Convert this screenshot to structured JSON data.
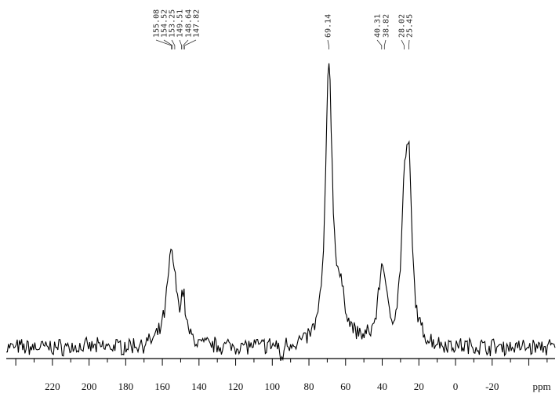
{
  "chart_data": {
    "type": "line",
    "title": "",
    "xlabel": "ppm",
    "ylabel": "",
    "xlim": [
      245,
      -53
    ],
    "x_reversed": true,
    "grid": false,
    "legend": "none",
    "xticks": [
      220,
      200,
      180,
      160,
      140,
      120,
      100,
      80,
      60,
      40,
      20,
      0,
      -20
    ],
    "xtick_labels": [
      "220",
      "200",
      "180",
      "160",
      "140",
      "120",
      "100",
      "80",
      "60",
      "40",
      "20",
      "0",
      "-20"
    ],
    "peak_labels": [
      "155.08",
      "154.52",
      "153.25",
      "149.51",
      "148.64",
      "147.82",
      "69.14",
      "40.31",
      "38.82",
      "28.02",
      "25.45"
    ],
    "peak_label_ppm": [
      155.08,
      154.52,
      153.25,
      149.51,
      148.64,
      147.82,
      69.14,
      40.31,
      38.82,
      28.02,
      25.45
    ],
    "series": [
      {
        "components": [
          {
            "ppm": 155.0,
            "intensity": 33,
            "fwhm": 6
          },
          {
            "ppm": 148.6,
            "intensity": 14,
            "fwhm": 3
          },
          {
            "ppm": 69.1,
            "intensity": 98,
            "fwhm": 4.2
          },
          {
            "ppm": 63.0,
            "intensity": 14,
            "fwhm": 8
          },
          {
            "ppm": 40.3,
            "intensity": 22,
            "fwhm": 5
          },
          {
            "ppm": 38.8,
            "intensity": 8,
            "fwhm": 3
          },
          {
            "ppm": 28.0,
            "intensity": 40,
            "fwhm": 4
          },
          {
            "ppm": 25.45,
            "intensity": 55,
            "fwhm": 4
          }
        ],
        "relative_intensity_max": 100
      }
    ],
    "color": "#000000"
  }
}
